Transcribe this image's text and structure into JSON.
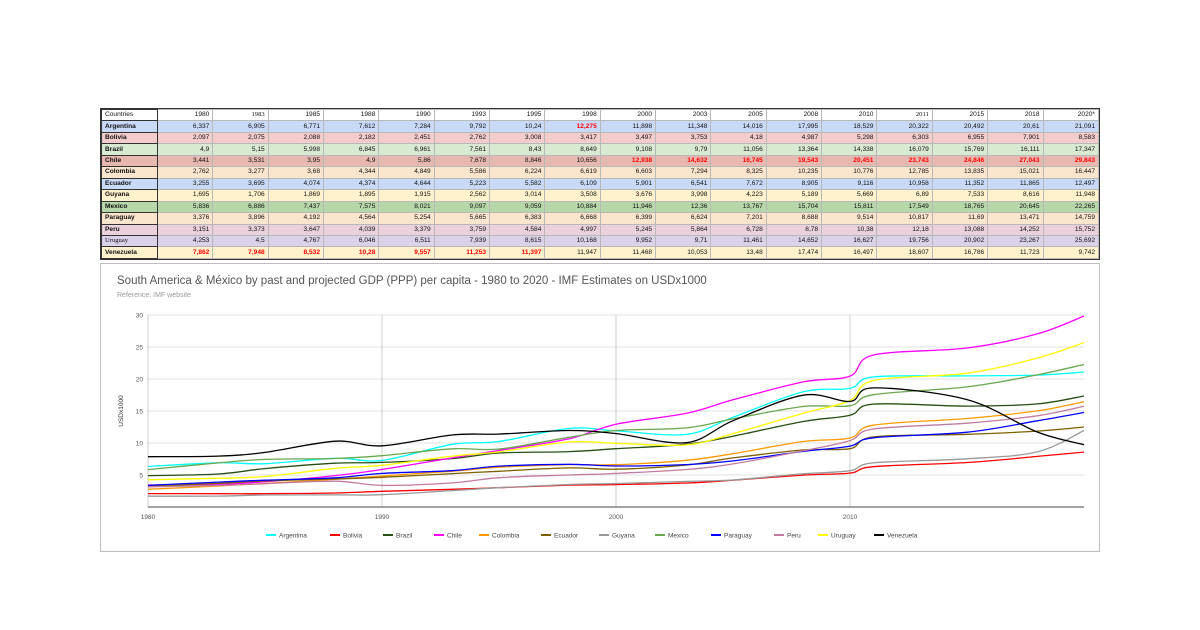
{
  "table": {
    "header": [
      "Countries",
      "1980",
      "1983",
      "1985",
      "1988",
      "1990",
      "1993",
      "1995",
      "1998",
      "2000",
      "2003",
      "2005",
      "2008",
      "2010",
      "2011",
      "2015",
      "2018",
      "2020*"
    ],
    "serif_header_indices": [
      2,
      14
    ],
    "rows": [
      {
        "country": "Argentina",
        "bg": "#c9daf8",
        "values": [
          "6,337",
          "6,905",
          "6,771",
          "7,612",
          "7,284",
          "9,792",
          "10,24",
          "12,275",
          "11,898",
          "11,348",
          "14,016",
          "17,995",
          "18,529",
          "20,322",
          "20,492",
          "20,61",
          "21,091"
        ],
        "red": [
          7
        ]
      },
      {
        "country": "Bolivia",
        "bg": "#f4cccc",
        "values": [
          "2,097",
          "2,075",
          "2,088",
          "2,182",
          "2,451",
          "2,762",
          "3,008",
          "3,417",
          "3,497",
          "3,753",
          "4,18",
          "4,987",
          "5,298",
          "6,303",
          "6,955",
          "7,901",
          "8,583"
        ],
        "red": []
      },
      {
        "country": "Brazil",
        "bg": "#d9ead3",
        "values": [
          "4,9",
          "5,15",
          "5,998",
          "6,845",
          "6,961",
          "7,561",
          "8,43",
          "8,649",
          "9,108",
          "9,79",
          "11,056",
          "13,364",
          "14,338",
          "16,079",
          "15,769",
          "16,111",
          "17,347"
        ],
        "red": []
      },
      {
        "country": "Chile",
        "bg": "#e6b8af",
        "values": [
          "3,441",
          "3,531",
          "3,95",
          "4,9",
          "5,86",
          "7,678",
          "8,846",
          "10,656",
          "12,938",
          "14,632",
          "16,745",
          "19,543",
          "20,451",
          "23,743",
          "24,846",
          "27,043",
          "29,843"
        ],
        "red": [
          8,
          9,
          10,
          11,
          12,
          13,
          14,
          15,
          16
        ]
      },
      {
        "country": "Colombia",
        "bg": "#fce5cd",
        "values": [
          "2,762",
          "3,277",
          "3,68",
          "4,344",
          "4,849",
          "5,586",
          "6,224",
          "6,619",
          "6,603",
          "7,294",
          "8,325",
          "10,235",
          "10,776",
          "12,785",
          "13,835",
          "15,021",
          "16,447"
        ],
        "red": []
      },
      {
        "country": "Ecuador",
        "bg": "#c9daf8",
        "values": [
          "3,255",
          "3,695",
          "4,074",
          "4,374",
          "4,644",
          "5,223",
          "5,582",
          "6,109",
          "5,901",
          "6,541",
          "7,672",
          "8,905",
          "9,116",
          "10,958",
          "11,352",
          "11,865",
          "12,497"
        ],
        "red": []
      },
      {
        "country": "Guyana",
        "bg": "#fff2cc",
        "values": [
          "1,695",
          "1,706",
          "1,869",
          "1,895",
          "1,915",
          "2,562",
          "3,014",
          "3,508",
          "3,676",
          "3,998",
          "4,223",
          "5,189",
          "5,669",
          "6,89",
          "7,533",
          "8,616",
          "11,948"
        ],
        "red": []
      },
      {
        "country": "Mexico",
        "bg": "#b6d7a8",
        "values": [
          "5,836",
          "6,886",
          "7,437",
          "7,575",
          "8,021",
          "9,097",
          "9,059",
          "10,884",
          "11,946",
          "12,36",
          "13,767",
          "15,704",
          "15,811",
          "17,549",
          "18,765",
          "20,645",
          "22,265"
        ],
        "red": []
      },
      {
        "country": "Paraguay",
        "bg": "#fce5cd",
        "values": [
          "3,376",
          "3,896",
          "4,192",
          "4,564",
          "5,254",
          "5,665",
          "6,383",
          "6,668",
          "6,399",
          "6,624",
          "7,201",
          "8,688",
          "9,514",
          "10,817",
          "11,69",
          "13,471",
          "14,759"
        ],
        "red": []
      },
      {
        "country": "Peru",
        "bg": "#ead1dc",
        "values": [
          "3,151",
          "3,373",
          "3,647",
          "4,039",
          "3,379",
          "3,759",
          "4,584",
          "4,997",
          "5,245",
          "5,864",
          "6,728",
          "8,78",
          "10,38",
          "12,18",
          "13,088",
          "14,252",
          "15,752"
        ],
        "red": []
      },
      {
        "country": "Uruguay",
        "bg": "#d9d2e9",
        "serif": true,
        "values": [
          "4,253",
          "4,5",
          "4,767",
          "6,046",
          "6,511",
          "7,939",
          "8,615",
          "10,168",
          "9,952",
          "9,71",
          "11,461",
          "14,652",
          "16,627",
          "19,756",
          "20,902",
          "23,267",
          "25,692"
        ],
        "red": []
      },
      {
        "country": "Venezuela",
        "bg": "#fff2cc",
        "values": [
          "7,862",
          "7,948",
          "8,532",
          "10,28",
          "9,557",
          "11,253",
          "11,397",
          "11,947",
          "11,468",
          "10,053",
          "13,48",
          "17,474",
          "16,497",
          "18,607",
          "16,786",
          "11,723",
          "9,742"
        ],
        "red": [
          0,
          1,
          2,
          3,
          4,
          5,
          6
        ]
      }
    ]
  },
  "chart": {
    "title": "South America & México by past and projected GDP (PPP) per capita - 1980 to 2020 - IMF Estimates on USDx1000",
    "subtitle": "Reference: IMF website"
  },
  "chart_data": {
    "type": "line",
    "title": "South America & México by past and projected GDP (PPP) per capita - 1980 to 2020 - IMF Estimates on USDx1000",
    "subtitle": "Reference: IMF website",
    "xlabel": "",
    "ylabel": "USDx1000",
    "xlim": [
      1980,
      2020
    ],
    "ylim": [
      0,
      30
    ],
    "x_ticks": [
      1980,
      1990,
      2000,
      2010
    ],
    "y_ticks": [
      5,
      10,
      15,
      20,
      25,
      30
    ],
    "grid": true,
    "legend_position": "bottom",
    "x": [
      1980,
      1983,
      1985,
      1988,
      1990,
      1993,
      1995,
      1998,
      2000,
      2003,
      2005,
      2008,
      2010,
      2011,
      2015,
      2018,
      2020
    ],
    "series": [
      {
        "name": "Argentina",
        "color": "#00ffff",
        "values": [
          6.337,
          6.905,
          6.771,
          7.612,
          7.284,
          9.792,
          10.24,
          12.275,
          11.898,
          11.348,
          14.016,
          17.995,
          18.529,
          20.322,
          20.492,
          20.61,
          21.091
        ]
      },
      {
        "name": "Bolivia",
        "color": "#ff0000",
        "values": [
          2.097,
          2.075,
          2.088,
          2.182,
          2.451,
          2.762,
          3.008,
          3.417,
          3.497,
          3.753,
          4.18,
          4.987,
          5.298,
          6.303,
          6.955,
          7.901,
          8.583
        ]
      },
      {
        "name": "Brazil",
        "color": "#274e13",
        "values": [
          4.9,
          5.15,
          5.998,
          6.845,
          6.961,
          7.561,
          8.43,
          8.649,
          9.108,
          9.79,
          11.056,
          13.364,
          14.338,
          16.079,
          15.769,
          16.111,
          17.347
        ]
      },
      {
        "name": "Chile",
        "color": "#ff00ff",
        "values": [
          3.441,
          3.531,
          3.95,
          4.9,
          5.86,
          7.678,
          8.846,
          10.656,
          12.938,
          14.632,
          16.745,
          19.543,
          20.451,
          23.743,
          24.846,
          27.043,
          29.843
        ]
      },
      {
        "name": "Colombia",
        "color": "#ff9900",
        "values": [
          2.762,
          3.277,
          3.68,
          4.344,
          4.849,
          5.586,
          6.224,
          6.619,
          6.603,
          7.294,
          8.325,
          10.235,
          10.776,
          12.785,
          13.835,
          15.021,
          16.447
        ]
      },
      {
        "name": "Ecuador",
        "color": "#7f6000",
        "values": [
          3.255,
          3.695,
          4.074,
          4.374,
          4.644,
          5.223,
          5.582,
          6.109,
          5.901,
          6.541,
          7.672,
          8.905,
          9.116,
          10.958,
          11.352,
          11.865,
          12.497
        ]
      },
      {
        "name": "Guyana",
        "color": "#999999",
        "values": [
          1.695,
          1.706,
          1.869,
          1.895,
          1.915,
          2.562,
          3.014,
          3.508,
          3.676,
          3.998,
          4.223,
          5.189,
          5.669,
          6.89,
          7.533,
          8.616,
          11.948
        ]
      },
      {
        "name": "Mexico",
        "color": "#6aa84f",
        "values": [
          5.836,
          6.886,
          7.437,
          7.575,
          8.021,
          9.097,
          9.059,
          10.884,
          11.946,
          12.36,
          13.767,
          15.704,
          15.811,
          17.549,
          18.765,
          20.645,
          22.265
        ]
      },
      {
        "name": "Paraguay",
        "color": "#0000ff",
        "values": [
          3.376,
          3.896,
          4.192,
          4.564,
          5.254,
          5.665,
          6.383,
          6.668,
          6.399,
          6.624,
          7.201,
          8.688,
          9.514,
          10.817,
          11.69,
          13.471,
          14.759
        ]
      },
      {
        "name": "Peru",
        "color": "#c27ba0",
        "values": [
          3.151,
          3.373,
          3.647,
          4.039,
          3.379,
          3.759,
          4.584,
          4.997,
          5.245,
          5.864,
          6.728,
          8.78,
          10.38,
          12.18,
          13.088,
          14.252,
          15.752
        ]
      },
      {
        "name": "Uruguay",
        "color": "#ffff00",
        "values": [
          4.253,
          4.5,
          4.767,
          6.046,
          6.511,
          7.939,
          8.615,
          10.168,
          9.952,
          9.71,
          11.461,
          14.652,
          16.627,
          19.756,
          20.902,
          23.267,
          25.692
        ]
      },
      {
        "name": "Venezuela",
        "color": "#000000",
        "values": [
          7.862,
          7.948,
          8.532,
          10.28,
          9.557,
          11.253,
          11.397,
          11.947,
          11.468,
          10.053,
          13.48,
          17.474,
          16.497,
          18.607,
          16.786,
          11.723,
          9.742
        ]
      }
    ]
  }
}
